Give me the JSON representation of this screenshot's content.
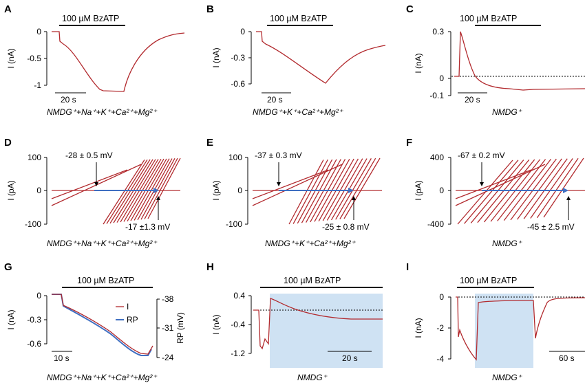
{
  "colors": {
    "trace": "#b22a2e",
    "rp": "#3f6fc2",
    "arrow": "#3f6fc2",
    "shade": "#cfe2f3"
  },
  "drug_label": "100 µM BzATP",
  "panels": {
    "A": {
      "label": "A",
      "ylabel": "I (nA)",
      "yticks": [
        "0",
        "-0.5",
        "-1"
      ],
      "scale": "20 s",
      "solution": "NMDG⁺+Na⁺+K⁺+Ca²⁺+Mg²⁺"
    },
    "B": {
      "label": "B",
      "ylabel": "I (nA)",
      "yticks": [
        "0",
        "-0.3",
        "-0.6"
      ],
      "scale": "20 s",
      "solution": "NMDG⁺+K⁺+Ca²⁺+Mg²⁺"
    },
    "C": {
      "label": "C",
      "ylabel": "I (nA)",
      "yticks": [
        "0.3",
        "0",
        "-0.1"
      ],
      "scale": "20 s",
      "solution": "NMDG⁺"
    },
    "D": {
      "label": "D",
      "ylabel": "I (pA)",
      "yticks": [
        "100",
        "0",
        "-100"
      ],
      "ann_top": "-28 ± 0.5 mV",
      "ann_bottom": "-17 ±1.3 mV",
      "solution": "NMDG⁺+Na⁺+K⁺+Ca²⁺+Mg²⁺"
    },
    "E": {
      "label": "E",
      "ylabel": "I (pA)",
      "yticks": [
        "100",
        "0",
        "-100"
      ],
      "ann_top": "-37 ± 0.3 mV",
      "ann_bottom": "-25 ± 0.8 mV",
      "solution": "NMDG⁺+K⁺+Ca²⁺+Mg²⁺"
    },
    "F": {
      "label": "F",
      "ylabel": "I (pA)",
      "yticks": [
        "400",
        "0",
        "-400"
      ],
      "ann_top": "-67 ± 0.2 mV",
      "ann_bottom": "-45 ± 2.5 mV",
      "solution": "NMDG⁺"
    },
    "G": {
      "label": "G",
      "ylabel": "I (nA)",
      "ylabel_right": "RP (mV)",
      "yticks": [
        "0",
        "-0.3",
        "-0.6"
      ],
      "yticks_right": [
        "-38",
        "-31",
        "-24"
      ],
      "legend": [
        "I",
        "RP"
      ],
      "scale": "10 s",
      "solution": "NMDG⁺+Na⁺+K⁺+Ca²⁺+Mg²⁺"
    },
    "H": {
      "label": "H",
      "ylabel": "I (nA)",
      "yticks": [
        "0.4",
        "-0.4",
        "-1.2"
      ],
      "scale": "20 s",
      "solution": "NMDG⁺"
    },
    "I": {
      "label": "I",
      "ylabel": "I (nA)",
      "yticks": [
        "0",
        "-2",
        "-4"
      ],
      "scale": "60 s",
      "solution": "NMDG⁺"
    }
  }
}
